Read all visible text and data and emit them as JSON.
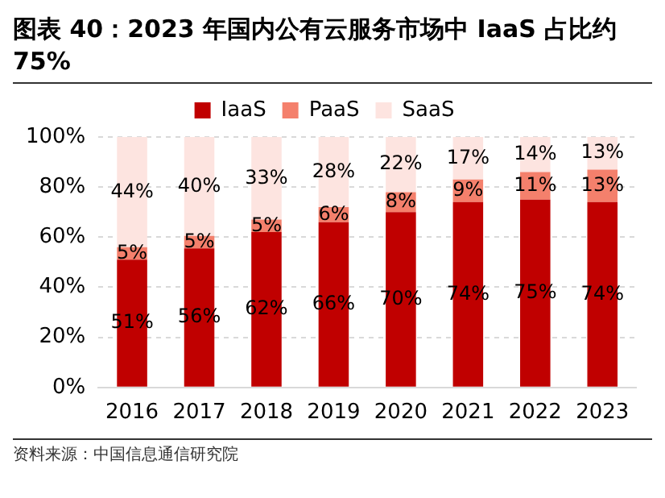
{
  "chart_data": {
    "type": "bar",
    "title": "图表 40：2023 年国内公有云服务市场中 IaaS 占比约 75%",
    "categories": [
      "2016",
      "2017",
      "2018",
      "2019",
      "2020",
      "2021",
      "2022",
      "2023"
    ],
    "series": [
      {
        "name": "IaaS",
        "color": "#c00000",
        "values": [
          51,
          55.5,
          62,
          66,
          70,
          74,
          75,
          74
        ],
        "value_labels": [
          "51%",
          "56%",
          "62%",
          "66%",
          "70%",
          "74%",
          "75%",
          "74%"
        ]
      },
      {
        "name": "PaaS",
        "color": "#f4806c",
        "values": [
          5,
          5,
          5,
          6,
          8,
          9,
          11,
          13
        ],
        "value_labels": [
          "5%",
          "5%",
          "5%",
          "6%",
          "8%",
          "9%",
          "11%",
          "13%"
        ]
      },
      {
        "name": "SaaS",
        "color": "#fde4e0",
        "values": [
          44,
          39.5,
          33,
          28,
          22,
          17,
          14,
          13
        ],
        "value_labels": [
          "44%",
          "40%",
          "33%",
          "28%",
          "22%",
          "17%",
          "14%",
          "13%"
        ]
      }
    ],
    "stacked": true,
    "ylim": [
      0,
      100
    ],
    "yticks": [
      {
        "value": 0,
        "label": "0%"
      },
      {
        "value": 20,
        "label": "20%"
      },
      {
        "value": 40,
        "label": "40%"
      },
      {
        "value": 60,
        "label": "60%"
      },
      {
        "value": 80,
        "label": "80%"
      },
      {
        "value": 100,
        "label": "100%"
      }
    ],
    "grid": "y",
    "legend": "top",
    "annotations": [
      "资料来源：中国信息通信研究院"
    ]
  }
}
